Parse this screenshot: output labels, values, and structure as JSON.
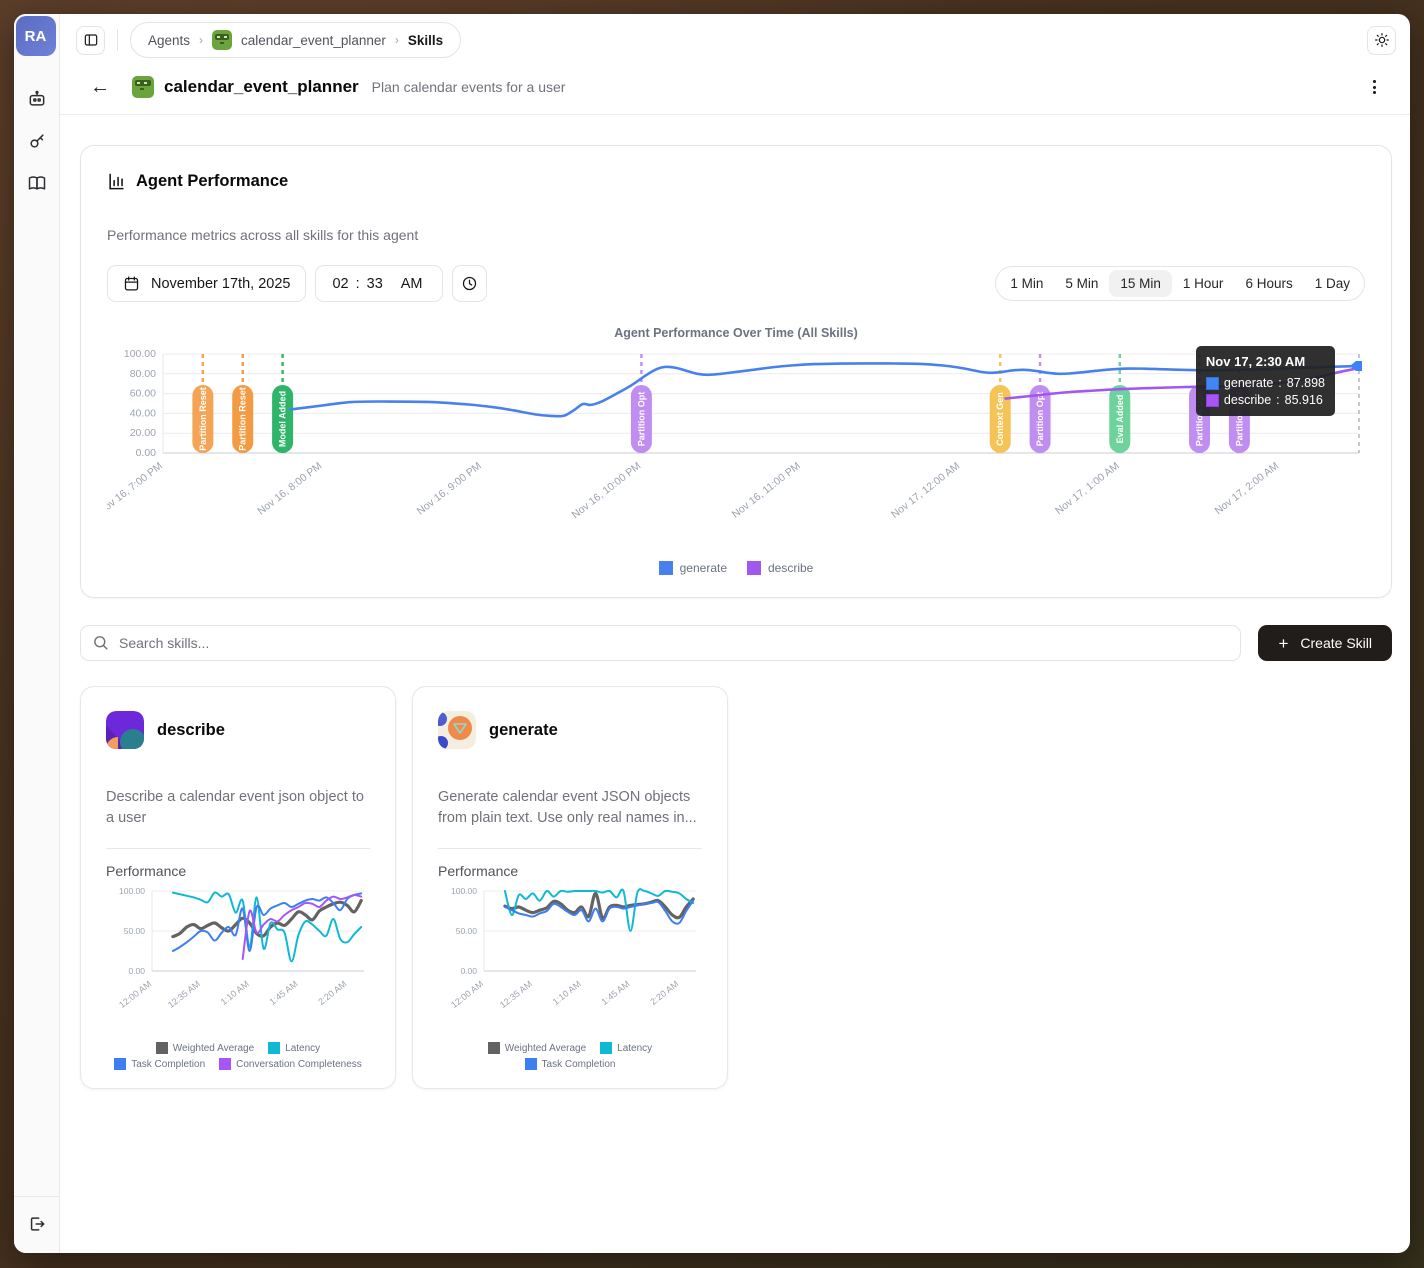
{
  "sidebar": {
    "avatar": "RA",
    "icons": [
      "agents-icon",
      "key-icon",
      "docs-icon"
    ],
    "logout": "logout-icon"
  },
  "breadcrumb": {
    "items": [
      "Agents",
      "calendar_event_planner",
      "Skills"
    ],
    "separator": "›"
  },
  "header": {
    "title": "calendar_event_planner",
    "subtitle": "Plan calendar events for a user"
  },
  "performance_card": {
    "title": "Agent Performance",
    "subtitle": "Performance metrics across all skills for this agent",
    "date": "November 17th, 2025",
    "time": {
      "hour": "02",
      "separator": ":",
      "minute": "33",
      "period": "AM"
    },
    "ranges": [
      "1 Min",
      "5 Min",
      "15 Min",
      "1 Hour",
      "6 Hours",
      "1 Day"
    ],
    "active_range": "15 Min",
    "tooltip": {
      "title": "Nov 17, 2:30 AM",
      "rows": [
        {
          "label": "generate",
          "value": "87.898",
          "color": "#4285f4"
        },
        {
          "label": "describe",
          "value": "85.916",
          "color": "#a855f7"
        }
      ]
    }
  },
  "search": {
    "placeholder": "Search skills...",
    "create_label": "Create Skill"
  },
  "skills": [
    {
      "name": "describe",
      "description": "Describe a calendar event json object to a user",
      "chart_label": "Performance"
    },
    {
      "name": "generate",
      "description": "Generate calendar event JSON objects from plain text. Use only real names in...",
      "chart_label": "Performance"
    }
  ],
  "chart_data": [
    {
      "type": "line",
      "title": "Agent Performance Over Time (All Skills)",
      "ylim": [
        0,
        100
      ],
      "yticks": [
        0,
        20,
        40,
        60,
        80,
        100
      ],
      "x_range_minutes": [
        0,
        450
      ],
      "x_tick_minutes": [
        0,
        60,
        120,
        180,
        240,
        300,
        360,
        420
      ],
      "x_tick_labels": [
        "Nov 16, 7:00 PM",
        "Nov 16, 8:00 PM",
        "Nov 16, 9:00 PM",
        "Nov 16, 10:00 PM",
        "Nov 16, 11:00 PM",
        "Nov 17, 12:00 AM",
        "Nov 17, 1:00 AM",
        "Nov 17, 2:00 AM"
      ],
      "legend_position": "bottom",
      "grid": true,
      "crosshair_minute": 450,
      "events": [
        {
          "minute": 15,
          "label": "Partition Reset",
          "color": "#f5a455"
        },
        {
          "minute": 30,
          "label": "Partition Reset",
          "color": "#f29b43"
        },
        {
          "minute": 45,
          "label": "Model Added",
          "color": "#2eb56a"
        },
        {
          "minute": 180,
          "label": "Partition Opt",
          "color": "#c08ef0"
        },
        {
          "minute": 315,
          "label": "Context Gen",
          "color": "#f4c556"
        },
        {
          "minute": 330,
          "label": "Partition Opt",
          "color": "#c08ef0"
        },
        {
          "minute": 360,
          "label": "Eval Added",
          "color": "#6ed39b"
        },
        {
          "minute": 390,
          "label": "Partition Opt",
          "color": "#c08ef0"
        },
        {
          "minute": 405,
          "label": "Partition Opt",
          "color": "#c08ef0"
        }
      ],
      "series": [
        {
          "name": "generate",
          "color": "#4880ee",
          "width": 2.6,
          "points": [
            [
              48,
              44
            ],
            [
              60,
              48
            ],
            [
              71,
              51.5
            ],
            [
              85,
              52
            ],
            [
              101,
              51.5
            ],
            [
              115,
              49
            ],
            [
              125,
              46
            ],
            [
              132,
              43
            ],
            [
              140,
              39
            ],
            [
              146,
              37.4
            ],
            [
              151,
              37.8
            ],
            [
              155,
              44
            ],
            [
              158,
              49.5
            ],
            [
              161,
              48.6
            ],
            [
              165,
              52
            ],
            [
              170,
              59
            ],
            [
              176,
              68
            ],
            [
              182,
              79
            ],
            [
              186,
              85
            ],
            [
              189,
              87
            ],
            [
              193,
              86
            ],
            [
              197,
              83
            ],
            [
              201,
              80
            ],
            [
              205,
              79
            ],
            [
              210,
              80
            ],
            [
              216,
              82
            ],
            [
              222,
              84
            ],
            [
              229,
              86.5
            ],
            [
              237,
              88.5
            ],
            [
              245,
              89.8
            ],
            [
              255,
              90.3
            ],
            [
              265,
              90.5
            ],
            [
              275,
              90.4
            ],
            [
              285,
              90
            ],
            [
              293,
              88.5
            ],
            [
              299,
              86.5
            ],
            [
              304,
              84
            ],
            [
              308,
              81.8
            ],
            [
              312,
              81
            ],
            [
              316,
              82
            ],
            [
              320,
              83.5
            ],
            [
              324,
              84
            ],
            [
              328,
              83
            ],
            [
              333,
              81
            ],
            [
              337,
              80
            ],
            [
              341,
              80.3
            ],
            [
              346,
              81.5
            ],
            [
              351,
              83
            ],
            [
              357,
              84.5
            ],
            [
              363,
              85.3
            ],
            [
              369,
              85.2
            ],
            [
              375,
              84.7
            ],
            [
              381,
              84.2
            ],
            [
              387,
              83.8
            ],
            [
              393,
              83.6
            ],
            [
              399,
              83.8
            ],
            [
              405,
              84
            ],
            [
              411,
              84.3
            ],
            [
              417,
              84.8
            ],
            [
              423,
              85.4
            ],
            [
              429,
              86
            ],
            [
              435,
              86.6
            ],
            [
              441,
              87.2
            ],
            [
              446,
              87.6
            ],
            [
              450,
              87.898
            ]
          ]
        },
        {
          "name": "describe",
          "color": "#a158ef",
          "width": 2.6,
          "points": [
            [
              317,
              55
            ],
            [
              325,
              57.2
            ],
            [
              333,
              59.5
            ],
            [
              341,
              61.5
            ],
            [
              350,
              63
            ],
            [
              360,
              64.5
            ],
            [
              370,
              65.5
            ],
            [
              380,
              66.3
            ],
            [
              390,
              67
            ],
            [
              400,
              67.6
            ],
            [
              408,
              68.4
            ],
            [
              415,
              69.6
            ],
            [
              422,
              71.2
            ],
            [
              428,
              73.5
            ],
            [
              434,
              76.5
            ],
            [
              439,
              79.5
            ],
            [
              443,
              82
            ],
            [
              447,
              84.2
            ],
            [
              450,
              85.916
            ]
          ]
        }
      ]
    },
    {
      "type": "line",
      "title": "describe Performance",
      "ylim": [
        0,
        100
      ],
      "yticks": [
        0,
        50,
        100
      ],
      "x_range_minutes": [
        0,
        152
      ],
      "x_tick_minutes": [
        0,
        35,
        70,
        105,
        140
      ],
      "x_tick_labels": [
        "12:00 AM",
        "12:35 AM",
        "1:10 AM",
        "1:45 AM",
        "2:20 AM"
      ],
      "legend_position": "bottom",
      "grid": false,
      "series_start_minute": 15,
      "series_step_minutes": 5,
      "series": [
        {
          "name": "Weighted Average",
          "color": "#636363",
          "width": 3.2,
          "values": [
            43,
            47,
            55,
            58,
            53,
            57,
            60,
            54,
            50,
            58,
            66,
            60,
            47,
            44,
            55,
            60,
            57,
            65,
            74,
            70,
            64,
            75,
            80,
            84,
            86,
            82,
            74,
            88
          ]
        },
        {
          "name": "Latency",
          "color": "#0fb8d4",
          "width": 2,
          "values": [
            98,
            96,
            94,
            92,
            89,
            86,
            98,
            93,
            96,
            73,
            88,
            30,
            92,
            28,
            60,
            52,
            48,
            12,
            45,
            62,
            58,
            50,
            44,
            65,
            40,
            36,
            46,
            55
          ]
        },
        {
          "name": "Task Completion",
          "color": "#3d7ef0",
          "width": 2,
          "values": [
            25,
            30,
            36,
            43,
            50,
            48,
            38,
            48,
            55,
            45,
            78,
            25,
            80,
            70,
            78,
            82,
            85,
            80,
            84,
            88,
            90,
            88,
            92,
            85,
            76,
            90,
            95,
            97
          ]
        },
        {
          "name": "Conversation Completeness",
          "color": "#a855f7",
          "width": 2,
          "values": [
            null,
            null,
            null,
            null,
            null,
            null,
            null,
            null,
            null,
            null,
            15,
            75,
            48,
            58,
            65,
            62,
            70,
            76,
            80,
            85,
            84,
            80,
            88,
            93,
            90,
            92,
            95,
            93
          ]
        }
      ]
    },
    {
      "type": "line",
      "title": "generate Performance",
      "ylim": [
        0,
        100
      ],
      "yticks": [
        0,
        50,
        100
      ],
      "x_range_minutes": [
        0,
        152
      ],
      "x_tick_minutes": [
        0,
        35,
        70,
        105,
        140
      ],
      "x_tick_labels": [
        "12:00 AM",
        "12:35 AM",
        "1:10 AM",
        "1:45 AM",
        "2:20 AM"
      ],
      "legend_position": "bottom",
      "grid": false,
      "series_start_minute": 15,
      "series_step_minutes": 5,
      "series": [
        {
          "name": "Weighted Average",
          "color": "#636363",
          "width": 3.2,
          "values": [
            81,
            78,
            80,
            76,
            73,
            76,
            79,
            87,
            84,
            76,
            73,
            80,
            68,
            97,
            66,
            80,
            82,
            80,
            82,
            83,
            84,
            86,
            88,
            80,
            70,
            67,
            80,
            90
          ]
        },
        {
          "name": "Latency",
          "color": "#0fb8d4",
          "width": 2,
          "values": [
            100,
            70,
            95,
            90,
            97,
            88,
            100,
            93,
            100,
            99,
            100,
            100,
            100,
            100,
            98,
            100,
            92,
            100,
            50,
            98,
            100,
            97,
            94,
            100,
            99,
            97,
            90,
            85
          ]
        },
        {
          "name": "Task Completion",
          "color": "#3d7ef0",
          "width": 2,
          "values": [
            80,
            76,
            72,
            70,
            68,
            72,
            75,
            84,
            80,
            74,
            70,
            76,
            62,
            78,
            62,
            78,
            80,
            78,
            80,
            82,
            84,
            85,
            86,
            75,
            62,
            60,
            75,
            88
          ]
        }
      ]
    }
  ]
}
